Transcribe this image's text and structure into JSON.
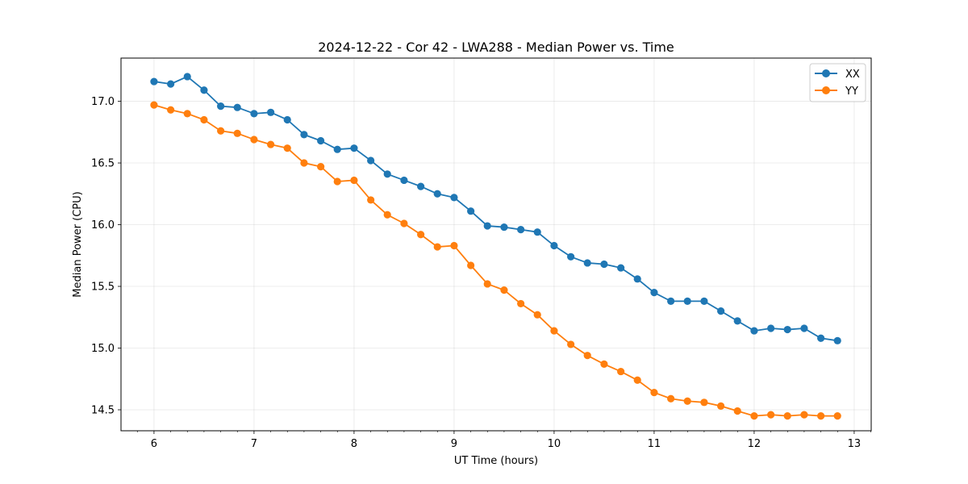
{
  "chart_data": {
    "type": "line",
    "title": "2024-12-22 - Cor 42 - LWA288 - Median Power vs. Time",
    "xlabel": "UT Time (hours)",
    "ylabel": "Median Power (CPU)",
    "xlim": [
      5.67,
      13.17
    ],
    "ylim": [
      14.33,
      17.35
    ],
    "xticks": [
      6,
      7,
      8,
      9,
      10,
      11,
      12,
      13
    ],
    "yticks": [
      14.5,
      15.0,
      15.5,
      16.0,
      16.5,
      17.0
    ],
    "xtick_labels": [
      "6",
      "7",
      "8",
      "9",
      "10",
      "11",
      "12",
      "13"
    ],
    "ytick_labels": [
      "14.5",
      "15.0",
      "15.5",
      "16.0",
      "16.5",
      "17.0"
    ],
    "grid": true,
    "legend_position": "top-right",
    "x": [
      6.0,
      6.167,
      6.333,
      6.5,
      6.667,
      6.833,
      7.0,
      7.167,
      7.333,
      7.5,
      7.667,
      7.833,
      8.0,
      8.167,
      8.333,
      8.5,
      8.667,
      8.833,
      9.0,
      9.167,
      9.333,
      9.5,
      9.667,
      9.833,
      10.0,
      10.167,
      10.333,
      10.5,
      10.667,
      10.833,
      11.0,
      11.167,
      11.333,
      11.5,
      11.667,
      11.833,
      12.0,
      12.167,
      12.333,
      12.5,
      12.667,
      12.833
    ],
    "series": [
      {
        "name": "XX",
        "color": "#1f77b4",
        "values": [
          17.16,
          17.14,
          17.2,
          17.09,
          16.96,
          16.95,
          16.9,
          16.91,
          16.85,
          16.73,
          16.68,
          16.61,
          16.62,
          16.52,
          16.41,
          16.36,
          16.31,
          16.25,
          16.22,
          16.11,
          15.99,
          15.98,
          15.96,
          15.94,
          15.83,
          15.74,
          15.69,
          15.68,
          15.65,
          15.56,
          15.45,
          15.38,
          15.38,
          15.38,
          15.3,
          15.22,
          15.14,
          15.16,
          15.15,
          15.16,
          15.08,
          15.06
        ]
      },
      {
        "name": "YY",
        "color": "#ff7f0e",
        "values": [
          16.97,
          16.93,
          16.9,
          16.85,
          16.76,
          16.74,
          16.69,
          16.65,
          16.62,
          16.5,
          16.47,
          16.35,
          16.36,
          16.2,
          16.08,
          16.01,
          15.92,
          15.82,
          15.83,
          15.67,
          15.52,
          15.47,
          15.36,
          15.27,
          15.14,
          15.03,
          14.94,
          14.87,
          14.81,
          14.74,
          14.64,
          14.59,
          14.57,
          14.56,
          14.53,
          14.49,
          14.45,
          14.46,
          14.45,
          14.46,
          14.45,
          14.45
        ]
      }
    ]
  }
}
